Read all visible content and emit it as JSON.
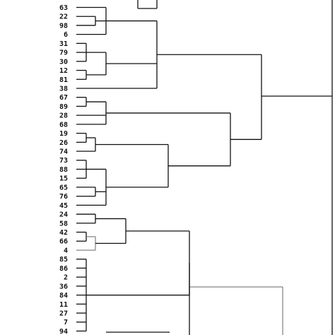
{
  "leaves": [
    "63",
    "22",
    "98",
    "6",
    "31",
    "79",
    "30",
    "12",
    "81",
    "38",
    "67",
    "89",
    "28",
    "68",
    "19",
    "26",
    "74",
    "73",
    "88",
    "15",
    "65",
    "76",
    "45",
    "24",
    "58",
    "42",
    "66",
    "4",
    "85",
    "86",
    "2",
    "36",
    "84",
    "11",
    "27",
    "7",
    "94"
  ]
}
